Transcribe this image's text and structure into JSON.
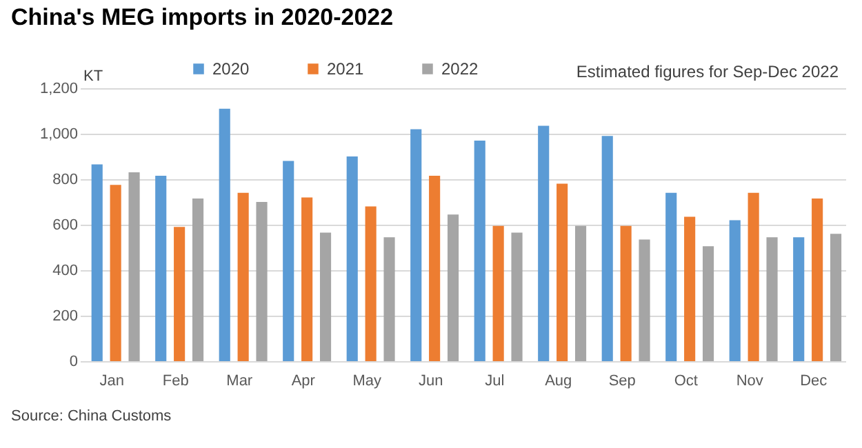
{
  "chart_data": {
    "type": "bar",
    "title": "China's MEG imports in 2020-2022",
    "ylabel": "KT",
    "categories": [
      "Jan",
      "Feb",
      "Mar",
      "Apr",
      "May",
      "Jun",
      "Jul",
      "Aug",
      "Sep",
      "Oct",
      "Nov",
      "Dec"
    ],
    "series": [
      {
        "name": "2020",
        "color": "#5b9bd5",
        "values": [
          865,
          815,
          1110,
          880,
          900,
          1020,
          970,
          1035,
          990,
          740,
          620,
          545
        ]
      },
      {
        "name": "2021",
        "color": "#ed7d31",
        "values": [
          775,
          590,
          740,
          720,
          680,
          815,
          595,
          780,
          595,
          635,
          740,
          715
        ]
      },
      {
        "name": "2022",
        "color": "#a5a5a5",
        "values": [
          830,
          715,
          700,
          565,
          545,
          645,
          565,
          595,
          535,
          505,
          545,
          560
        ]
      }
    ],
    "ylim": [
      0,
      1200
    ],
    "yticks": [
      0,
      {
        "value": 200,
        "label": "200"
      },
      {
        "value": 400,
        "label": "400"
      },
      {
        "value": 600,
        "label": "600"
      },
      {
        "value": 800,
        "label": "800"
      },
      {
        "value": 1000,
        "label": "1,000"
      },
      {
        "value": 1200,
        "label": "1,200"
      }
    ],
    "grid": "y",
    "legend": "top",
    "annotations": [
      "Estimated figures for Sep-Dec 2022",
      "Source: China Customs"
    ]
  }
}
